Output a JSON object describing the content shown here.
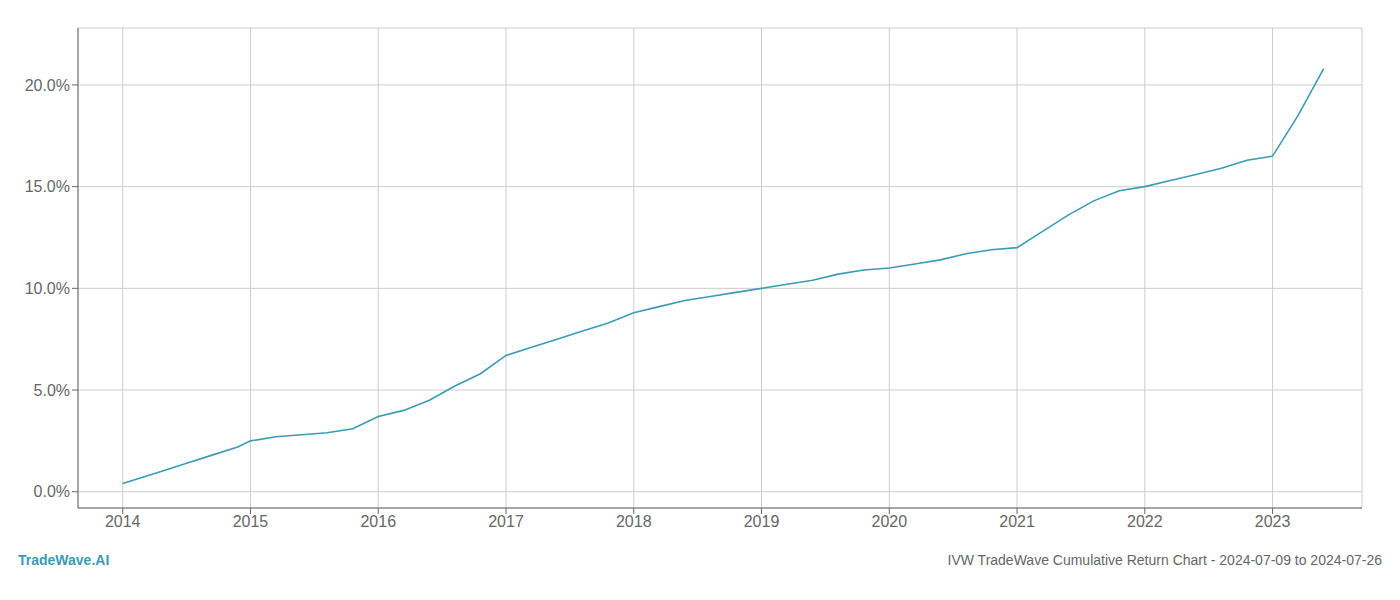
{
  "chart_data": {
    "type": "line",
    "title": "IVW TradeWave Cumulative Return Chart - 2024-07-09 to 2024-07-26",
    "annotations": [
      "TradeWave.AI"
    ],
    "color": "#3a9bb5",
    "x": [
      2014.0,
      2014.1,
      2014.3,
      2014.5,
      2014.7,
      2014.9,
      2015.0,
      2015.2,
      2015.4,
      2015.6,
      2015.8,
      2016.0,
      2016.2,
      2016.4,
      2016.6,
      2016.8,
      2017.0,
      2017.2,
      2017.4,
      2017.6,
      2017.8,
      2018.0,
      2018.2,
      2018.4,
      2018.6,
      2018.8,
      2019.0,
      2019.2,
      2019.4,
      2019.6,
      2019.8,
      2020.0,
      2020.2,
      2020.4,
      2020.6,
      2020.8,
      2021.0,
      2021.2,
      2021.4,
      2021.6,
      2021.8,
      2022.0,
      2022.2,
      2022.4,
      2022.6,
      2022.8,
      2023.0,
      2023.2,
      2023.4
    ],
    "values": [
      0.004,
      0.006,
      0.01,
      0.014,
      0.018,
      0.022,
      0.025,
      0.027,
      0.028,
      0.029,
      0.031,
      0.037,
      0.04,
      0.045,
      0.052,
      0.058,
      0.067,
      0.071,
      0.075,
      0.079,
      0.083,
      0.088,
      0.091,
      0.094,
      0.096,
      0.098,
      0.1,
      0.102,
      0.104,
      0.107,
      0.109,
      0.11,
      0.112,
      0.114,
      0.117,
      0.119,
      0.12,
      0.128,
      0.136,
      0.143,
      0.148,
      0.15,
      0.153,
      0.156,
      0.159,
      0.163,
      0.165,
      0.185,
      0.208
    ],
    "xlim": [
      2013.65,
      2023.7
    ],
    "ylim": [
      -0.008,
      0.228
    ],
    "xticks": [
      2014,
      2015,
      2016,
      2017,
      2018,
      2019,
      2020,
      2021,
      2022,
      2023
    ],
    "yticks": [
      {
        "value": 0.0,
        "label": "0.0%"
      },
      {
        "value": 0.05,
        "label": "5.0%"
      },
      {
        "value": 0.1,
        "label": "10.0%"
      },
      {
        "value": 0.15,
        "label": "15.0%"
      },
      {
        "value": 0.2,
        "label": "20.0%"
      }
    ],
    "grid": true
  }
}
